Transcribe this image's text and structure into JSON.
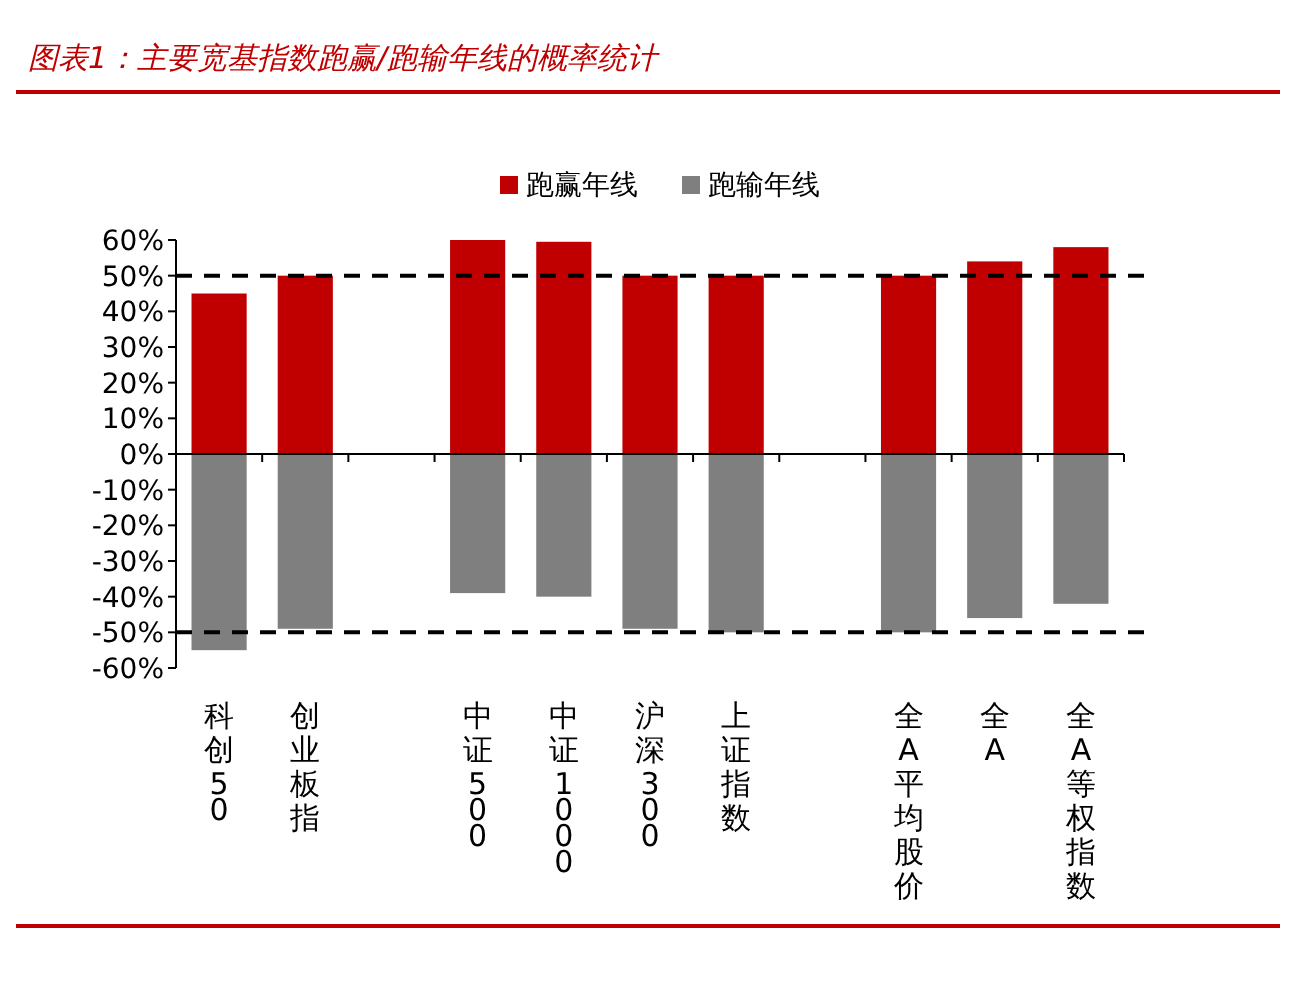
{
  "chart_data": {
    "type": "bar",
    "title": "图表1：主要宽基指数跑赢/跑输年线的概率统计",
    "categories": [
      "科创50",
      "创业板指",
      null,
      "中证500",
      "中证1000",
      "沪深300",
      "上证指数",
      null,
      "全A平均股价",
      "全A",
      "全A等权指数"
    ],
    "series": [
      {
        "name": "跑赢年线",
        "color": "#c00000",
        "values": [
          45,
          50,
          null,
          60,
          59.5,
          50,
          50,
          null,
          50,
          54,
          58
        ]
      },
      {
        "name": "跑输年线",
        "color": "#7f7f7f",
        "values": [
          -55,
          -49,
          null,
          -39,
          -40,
          -49,
          -50,
          null,
          -50,
          -46,
          -42
        ]
      }
    ],
    "ylim": [
      -60,
      60
    ],
    "yticks": [
      {
        "value": -60,
        "label": "-60%"
      },
      {
        "value": -50,
        "label": "-50%"
      },
      {
        "value": -40,
        "label": "-40%"
      },
      {
        "value": -30,
        "label": "-30%"
      },
      {
        "value": -20,
        "label": "-20%"
      },
      {
        "value": -10,
        "label": "-10%"
      },
      {
        "value": 0,
        "label": "0%"
      },
      {
        "value": 10,
        "label": "10%"
      },
      {
        "value": 20,
        "label": "20%"
      },
      {
        "value": 30,
        "label": "30%"
      },
      {
        "value": 40,
        "label": "40%"
      },
      {
        "value": 50,
        "label": "50%"
      },
      {
        "value": 60,
        "label": "60%"
      }
    ],
    "ref_lines": [
      {
        "axis": "y",
        "value": 50,
        "color": "#000000",
        "line_style": "dashed"
      },
      {
        "axis": "y",
        "value": -50,
        "color": "#000000",
        "line_style": "dashed"
      }
    ],
    "stacked": true,
    "legend": "top",
    "grid": false
  }
}
